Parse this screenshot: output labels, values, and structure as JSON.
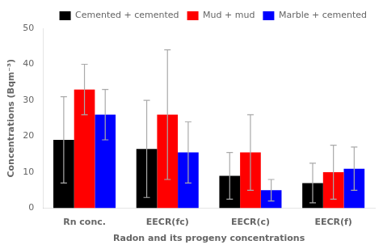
{
  "chart_data": {
    "type": "bar",
    "categories": [
      "Rn conc.",
      "EECR(fc)",
      "EECR(c)",
      "EECR(f)"
    ],
    "series": [
      {
        "name": "Cemented + cemented",
        "color": "#000000",
        "values": [
          19.0,
          16.5,
          9.0,
          7.0
        ],
        "errors": [
          12.0,
          13.5,
          6.5,
          5.5
        ]
      },
      {
        "name": "Mud + mud",
        "color": "#ff0000",
        "values": [
          33.0,
          26.0,
          15.5,
          10.0
        ],
        "errors": [
          7.0,
          18.0,
          10.5,
          7.5
        ]
      },
      {
        "name": "Marble + cemented",
        "color": "#0000ff",
        "values": [
          26.0,
          15.5,
          5.0,
          11.0
        ],
        "errors": [
          7.0,
          8.5,
          3.0,
          6.0
        ]
      }
    ],
    "xlabel": "Radon and its progeny concentrations",
    "ylabel": "Concentrations (Bqm⁻³)",
    "ylim": [
      0,
      50
    ],
    "yticks": [
      0,
      10,
      20,
      30,
      40,
      50
    ],
    "grid": false,
    "legend": "upper right"
  }
}
